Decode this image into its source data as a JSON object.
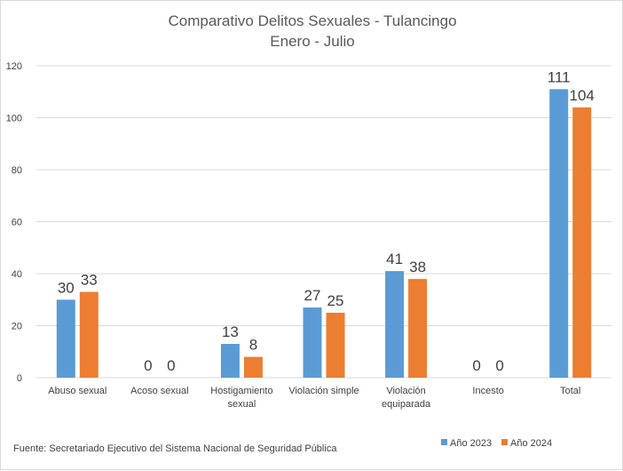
{
  "chart_data": {
    "type": "bar",
    "title": "Comparativo Delitos Sexuales - Tulancingo",
    "subtitle": "Enero - Julio",
    "categories": [
      [
        "Abuso sexual"
      ],
      [
        "Acoso sexual"
      ],
      [
        "Hostigamiento",
        "sexual"
      ],
      [
        "Violación simple"
      ],
      [
        "Violación",
        "equiparada"
      ],
      [
        "Incesto"
      ],
      [
        "Total"
      ]
    ],
    "series": [
      {
        "name": "Año 2023",
        "color": "#5b9bd5",
        "values": [
          30,
          0,
          13,
          27,
          41,
          0,
          111
        ]
      },
      {
        "name": "Año 2024",
        "color": "#ed7d31",
        "values": [
          33,
          0,
          8,
          25,
          38,
          0,
          104
        ]
      }
    ],
    "ylim": [
      0,
      120
    ],
    "yticks": [
      0,
      20,
      40,
      60,
      80,
      100,
      120
    ],
    "grid": true,
    "legend_position": "bottom-right",
    "data_labels": true
  },
  "source": "Fuente:  Secretariado Ejecutivo del Sistema Nacional de Seguridad Pública"
}
